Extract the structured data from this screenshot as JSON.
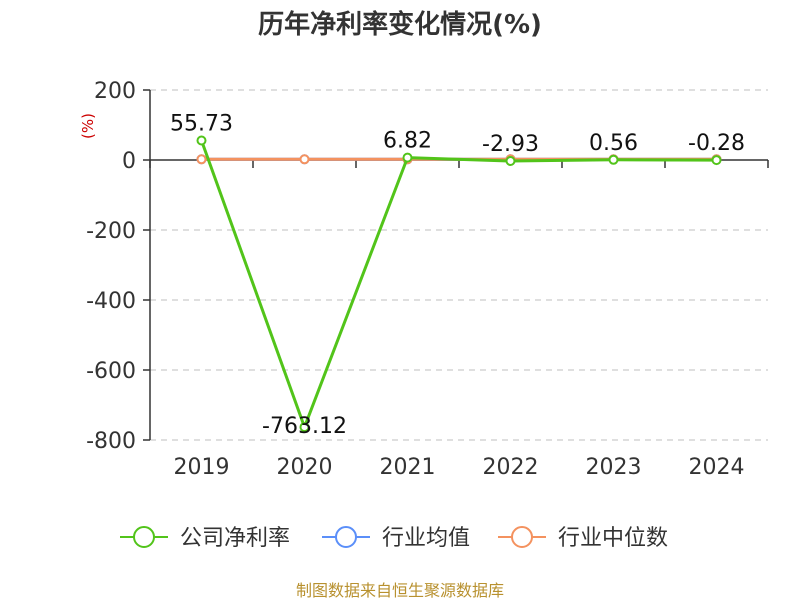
{
  "chart_data": {
    "type": "line",
    "title": "历年净利率变化情况(%)",
    "ylabel": "(%)",
    "xlabel": "",
    "categories": [
      "2019",
      "2020",
      "2021",
      "2022",
      "2023",
      "2024"
    ],
    "ylim": [
      -800,
      200
    ],
    "yticks": [
      200,
      0,
      -200,
      -400,
      -600,
      -800
    ],
    "grid": true,
    "legend_position": "bottom",
    "series": [
      {
        "name": "公司净利率",
        "color": "#52c41a",
        "values": [
          55.73,
          -763.12,
          6.82,
          -2.93,
          0.56,
          -0.28
        ],
        "labels": [
          "55.73",
          "-763.12",
          "6.82",
          "-2.93",
          "0.56",
          "-0.28"
        ]
      },
      {
        "name": "行业均值",
        "color": "#5b8ff9",
        "values": [
          2.0,
          2.0,
          2.0,
          2.0,
          2.0,
          2.0
        ]
      },
      {
        "name": "行业中位数",
        "color": "#f4925f",
        "values": [
          2.0,
          2.0,
          2.0,
          2.0,
          2.0,
          2.0
        ]
      }
    ]
  },
  "source": "制图数据来自恒生聚源数据库"
}
